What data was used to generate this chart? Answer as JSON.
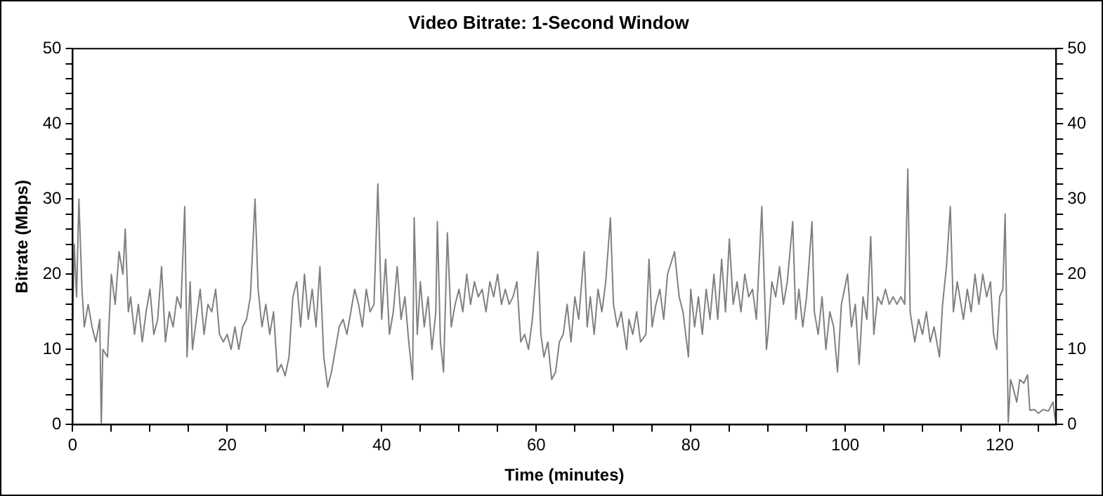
{
  "chart_data": {
    "type": "line",
    "title": "Video Bitrate: 1-Second Window",
    "xlabel": "Time (minutes)",
    "ylabel": "Bitrate (Mbps)",
    "legend": false,
    "marker": "none",
    "line_style": "solid",
    "xlim": [
      0,
      127.3
    ],
    "xticks": [
      0,
      {
        "value": 5,
        "label": null
      },
      {
        "value": 10,
        "label": null
      },
      {
        "value": 15,
        "label": null
      },
      20,
      {
        "value": 25,
        "label": null
      },
      {
        "value": 30,
        "label": null
      },
      {
        "value": 35,
        "label": null
      },
      40,
      {
        "value": 45,
        "label": null
      },
      {
        "value": 50,
        "label": null
      },
      {
        "value": 55,
        "label": null
      },
      60,
      {
        "value": 65,
        "label": null
      },
      {
        "value": 70,
        "label": null
      },
      {
        "value": 75,
        "label": null
      },
      80,
      {
        "value": 85,
        "label": null
      },
      {
        "value": 90,
        "label": null
      },
      {
        "value": 95,
        "label": null
      },
      100,
      {
        "value": 105,
        "label": null
      },
      {
        "value": 110,
        "label": null
      },
      {
        "value": 115,
        "label": null
      },
      120,
      {
        "value": 125,
        "label": null
      }
    ],
    "ylim": [
      0,
      50
    ],
    "yticks": [
      0,
      {
        "value": 2,
        "label": null
      },
      {
        "value": 4,
        "label": null
      },
      {
        "value": 6,
        "label": null
      },
      {
        "value": 8,
        "label": null
      },
      10,
      {
        "value": 12,
        "label": null
      },
      {
        "value": 14,
        "label": null
      },
      {
        "value": 16,
        "label": null
      },
      {
        "value": 18,
        "label": null
      },
      20,
      {
        "value": 22,
        "label": null
      },
      {
        "value": 24,
        "label": null
      },
      {
        "value": 26,
        "label": null
      },
      {
        "value": 28,
        "label": null
      },
      30,
      {
        "value": 32,
        "label": null
      },
      {
        "value": 34,
        "label": null
      },
      {
        "value": 36,
        "label": null
      },
      {
        "value": 38,
        "label": null
      },
      40,
      {
        "value": 42,
        "label": null
      },
      {
        "value": 44,
        "label": null
      },
      {
        "value": 46,
        "label": null
      },
      {
        "value": 48,
        "label": null
      },
      50
    ],
    "y2lim": [
      0,
      50
    ],
    "y2ticks": [
      0,
      {
        "value": 2,
        "label": null
      },
      {
        "value": 4,
        "label": null
      },
      {
        "value": 6,
        "label": null
      },
      {
        "value": 8,
        "label": null
      },
      10,
      {
        "value": 12,
        "label": null
      },
      {
        "value": 14,
        "label": null
      },
      {
        "value": 16,
        "label": null
      },
      {
        "value": 18,
        "label": null
      },
      20,
      {
        "value": 22,
        "label": null
      },
      {
        "value": 24,
        "label": null
      },
      {
        "value": 26,
        "label": null
      },
      {
        "value": 28,
        "label": null
      },
      30,
      {
        "value": 32,
        "label": null
      },
      {
        "value": 34,
        "label": null
      },
      {
        "value": 36,
        "label": null
      },
      {
        "value": 38,
        "label": null
      },
      40,
      {
        "value": 42,
        "label": null
      },
      {
        "value": 44,
        "label": null
      },
      {
        "value": 46,
        "label": null
      },
      {
        "value": 48,
        "label": null
      },
      50
    ],
    "x": [
      0,
      0.2,
      0.5,
      0.8,
      1.2,
      1.5,
      2,
      2.5,
      3,
      3.5,
      3.7,
      3.9,
      4.5,
      5,
      5.5,
      6,
      6.5,
      6.8,
      7.2,
      7.5,
      8,
      8.5,
      9,
      9.5,
      10,
      10.5,
      11,
      11.5,
      12,
      12.5,
      13,
      13.5,
      14,
      14.5,
      14.8,
      15.2,
      15.5,
      16,
      16.5,
      17,
      17.5,
      18,
      18.5,
      19,
      19.5,
      20,
      20.5,
      21,
      21.5,
      22,
      22.5,
      23,
      23.6,
      24,
      24.5,
      25,
      25.5,
      26,
      26.5,
      27,
      27.5,
      28,
      28.5,
      29,
      29.5,
      30,
      30.5,
      31,
      31.5,
      32,
      32.5,
      33,
      33.5,
      34,
      34.5,
      35,
      35.5,
      36,
      36.5,
      37,
      37.5,
      38,
      38.5,
      39,
      39.5,
      40,
      40.5,
      41,
      41.5,
      42,
      42.5,
      43,
      43.5,
      44,
      44.2,
      44.6,
      45,
      45.5,
      46,
      46.5,
      47,
      47.2,
      47.6,
      48,
      48.5,
      49,
      49.5,
      50,
      50.5,
      51,
      51.5,
      52,
      52.5,
      53,
      53.5,
      54,
      54.5,
      55,
      55.5,
      56,
      56.5,
      57,
      57.5,
      58,
      58.5,
      59,
      59.5,
      60.2,
      60.6,
      61,
      61.5,
      62,
      62.5,
      63,
      63.5,
      64,
      64.5,
      65,
      65.5,
      66.2,
      66.6,
      67,
      67.5,
      68,
      68.5,
      69,
      69.6,
      70,
      70.5,
      71,
      71.7,
      72,
      72.5,
      73,
      73.5,
      74.2,
      74.6,
      75,
      75.5,
      76,
      76.5,
      77,
      77.9,
      78.5,
      79,
      79.7,
      80,
      80.5,
      81,
      81.5,
      82,
      82.5,
      83,
      83.5,
      84,
      84.5,
      85,
      85.5,
      86,
      86.5,
      87,
      87.5,
      88,
      88.5,
      89.2,
      89.8,
      90,
      90.5,
      91,
      91.5,
      92,
      92.5,
      93.2,
      93.6,
      94,
      94.5,
      95,
      95.7,
      96,
      96.5,
      97,
      97.5,
      98,
      98.5,
      99,
      99.5,
      100.3,
      100.8,
      101.3,
      101.8,
      102.3,
      102.8,
      103.3,
      103.7,
      104.2,
      104.7,
      105.2,
      105.7,
      106.2,
      106.7,
      107.2,
      107.7,
      108.1,
      108.4,
      109,
      109.5,
      110,
      110.5,
      111,
      111.5,
      112.2,
      112.6,
      113.1,
      113.6,
      114,
      114.5,
      115.3,
      115.8,
      116.3,
      116.8,
      117.3,
      117.8,
      118.3,
      118.8,
      119.2,
      119.6,
      120,
      120.4,
      120.7,
      121.1,
      121.4,
      121.7,
      122.2,
      122.6,
      123.1,
      123.6,
      123.9,
      124.5,
      125,
      125.6,
      126.3,
      126.9,
      127.2
    ],
    "series": [
      {
        "color": "#808080",
        "values": [
          14,
          24,
          17,
          30,
          18,
          13,
          16,
          13,
          11,
          14,
          0,
          10,
          9,
          20,
          16,
          23,
          20,
          26,
          15,
          17,
          12,
          16,
          11,
          15,
          18,
          12,
          14,
          21,
          11,
          15,
          13,
          17,
          15.5,
          29,
          9,
          19,
          10,
          14,
          18,
          12,
          16,
          15,
          18,
          12,
          11,
          12,
          10,
          13,
          10,
          13,
          14,
          17,
          30,
          18,
          13,
          16,
          12,
          15,
          7,
          8,
          6.5,
          9,
          17,
          19,
          13,
          20,
          14,
          18,
          13,
          21,
          9,
          5,
          7,
          10,
          13,
          14,
          12,
          15,
          18,
          16,
          13,
          18,
          15,
          16,
          32,
          14,
          22,
          12,
          15,
          21,
          14,
          17,
          11,
          6,
          27.5,
          12,
          19,
          13,
          17,
          10,
          15,
          27,
          11,
          7,
          25.5,
          13,
          16,
          18,
          15,
          20,
          16,
          19,
          17,
          18,
          15,
          19,
          17,
          20,
          16,
          18,
          16,
          17,
          19,
          11,
          12,
          10,
          14,
          23,
          12,
          9,
          11,
          6,
          7,
          11,
          12,
          16,
          11,
          17,
          14,
          23,
          13,
          17,
          12,
          18,
          15,
          19,
          27.5,
          16,
          13,
          15,
          10,
          14,
          12,
          15,
          11,
          12,
          22,
          13,
          16,
          18,
          14,
          20,
          23,
          17,
          15,
          9,
          18,
          13,
          17,
          12,
          18,
          14,
          20,
          14,
          22,
          15,
          24.7,
          16,
          19,
          15,
          20,
          17,
          18,
          14,
          29,
          10,
          12,
          19,
          17,
          21,
          16,
          19,
          27,
          14,
          18,
          13,
          17,
          27,
          15,
          12,
          17,
          10,
          15,
          13,
          7,
          16,
          20,
          13,
          16,
          8,
          17,
          14,
          25,
          12,
          17,
          16,
          18,
          16,
          17,
          16,
          17,
          16,
          34,
          15,
          11,
          14,
          12,
          15,
          11,
          13,
          9,
          16,
          21,
          29,
          15,
          19,
          14,
          18,
          15,
          20,
          16,
          20,
          17,
          19,
          12,
          10,
          17,
          18,
          28,
          0.3,
          6,
          5,
          3,
          6,
          5.5,
          6.6,
          1.9,
          2,
          1.5,
          2,
          1.8,
          3,
          0.5
        ]
      }
    ]
  }
}
